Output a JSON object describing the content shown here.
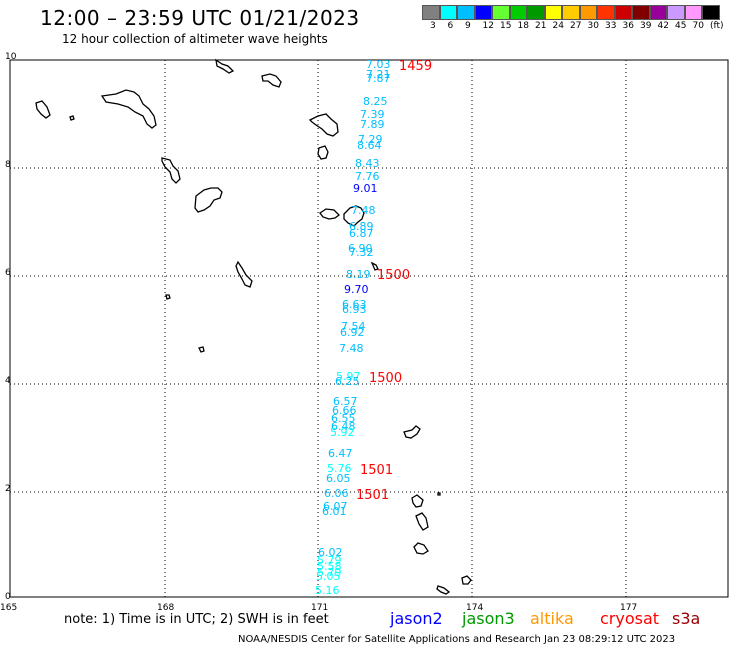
{
  "header": {
    "title": "12:00 – 23:59 UTC 01/21/2023",
    "subtitle": "12 hour collection of altimeter wave heights"
  },
  "legend": {
    "colors": [
      "#808080",
      "#00ffff",
      "#00bfff",
      "#0000ff",
      "#66ff33",
      "#00cc00",
      "#009900",
      "#ffff00",
      "#ffcc00",
      "#ff9900",
      "#ff3300",
      "#cc0000",
      "#800000",
      "#990099",
      "#cc99ff",
      "#ff99ff",
      "#000000"
    ],
    "labels": [
      "3",
      "6",
      "9",
      "12",
      "15",
      "18",
      "21",
      "24",
      "27",
      "30",
      "33",
      "36",
      "39",
      "42",
      "45",
      "70",
      "(ft)"
    ]
  },
  "axes": {
    "y_ticks": [
      "10",
      "8",
      "6",
      "4",
      "2",
      "0"
    ],
    "x_ticks": [
      "165",
      "168",
      "171",
      "174",
      "177"
    ]
  },
  "observations": [
    {
      "t": "7.03",
      "c": "#00bfff"
    },
    {
      "t": "7.21",
      "c": "#00bfff"
    },
    {
      "t": "7.87",
      "c": "#00bfff"
    },
    {
      "t": "8.25",
      "c": "#00bfff"
    },
    {
      "t": "7.39",
      "c": "#00bfff"
    },
    {
      "t": "7.89",
      "c": "#00bfff"
    },
    {
      "t": "7.29",
      "c": "#00bfff"
    },
    {
      "t": "8.64",
      "c": "#00bfff"
    },
    {
      "t": "8.43",
      "c": "#00bfff"
    },
    {
      "t": "7.76",
      "c": "#00bfff"
    },
    {
      "t": "9.01",
      "c": "#0000ff"
    },
    {
      "t": "7.48",
      "c": "#00bfff"
    },
    {
      "t": "6.89",
      "c": "#00bfff"
    },
    {
      "t": "6.87",
      "c": "#00bfff"
    },
    {
      "t": "6.90",
      "c": "#00bfff"
    },
    {
      "t": "7.32",
      "c": "#00bfff"
    },
    {
      "t": "8.19",
      "c": "#00bfff"
    },
    {
      "t": "9.70",
      "c": "#0000ff"
    },
    {
      "t": "6.63",
      "c": "#00bfff"
    },
    {
      "t": "6.93",
      "c": "#00bfff"
    },
    {
      "t": "7.54",
      "c": "#00bfff"
    },
    {
      "t": "6.92",
      "c": "#00bfff"
    },
    {
      "t": "7.48",
      "c": "#00bfff"
    },
    {
      "t": "5.97",
      "c": "#00ffff"
    },
    {
      "t": "6.25",
      "c": "#00bfff"
    },
    {
      "t": "6.57",
      "c": "#00bfff"
    },
    {
      "t": "6.66",
      "c": "#00bfff"
    },
    {
      "t": "6.55",
      "c": "#00bfff"
    },
    {
      "t": "6.48",
      "c": "#00bfff"
    },
    {
      "t": "5.92",
      "c": "#00ffff"
    },
    {
      "t": "6.47",
      "c": "#00bfff"
    },
    {
      "t": "5.76",
      "c": "#00ffff"
    },
    {
      "t": "6.05",
      "c": "#00bfff"
    },
    {
      "t": "6.06",
      "c": "#00bfff"
    },
    {
      "t": "6.07",
      "c": "#00bfff"
    },
    {
      "t": "6.01",
      "c": "#00bfff"
    },
    {
      "t": "6.02",
      "c": "#00bfff"
    },
    {
      "t": "5.79",
      "c": "#00ffff"
    },
    {
      "t": "5.58",
      "c": "#00ffff"
    },
    {
      "t": "5.79",
      "c": "#00ffff"
    },
    {
      "t": "5.05",
      "c": "#00ffff"
    },
    {
      "t": "5.16",
      "c": "#00ffff"
    }
  ],
  "time_labels": [
    "1459",
    "1500",
    "1500",
    "1501",
    "1501"
  ],
  "time_label_color": "#ff0000",
  "note": "note:  1) Time is in UTC;  2) SWH is in feet",
  "satellites": [
    {
      "name": "jason2",
      "color": "#0000ff"
    },
    {
      "name": "jason3",
      "color": "#009900"
    },
    {
      "name": "altika",
      "color": "#ff9900"
    },
    {
      "name": "cryosat",
      "color": "#ff0000"
    },
    {
      "name": "s3a",
      "color": "#990000"
    }
  ],
  "credit": "NOAA/NESDIS Center for Satellite Applications and Research    Jan 23 08:29:12 UTC 2023"
}
